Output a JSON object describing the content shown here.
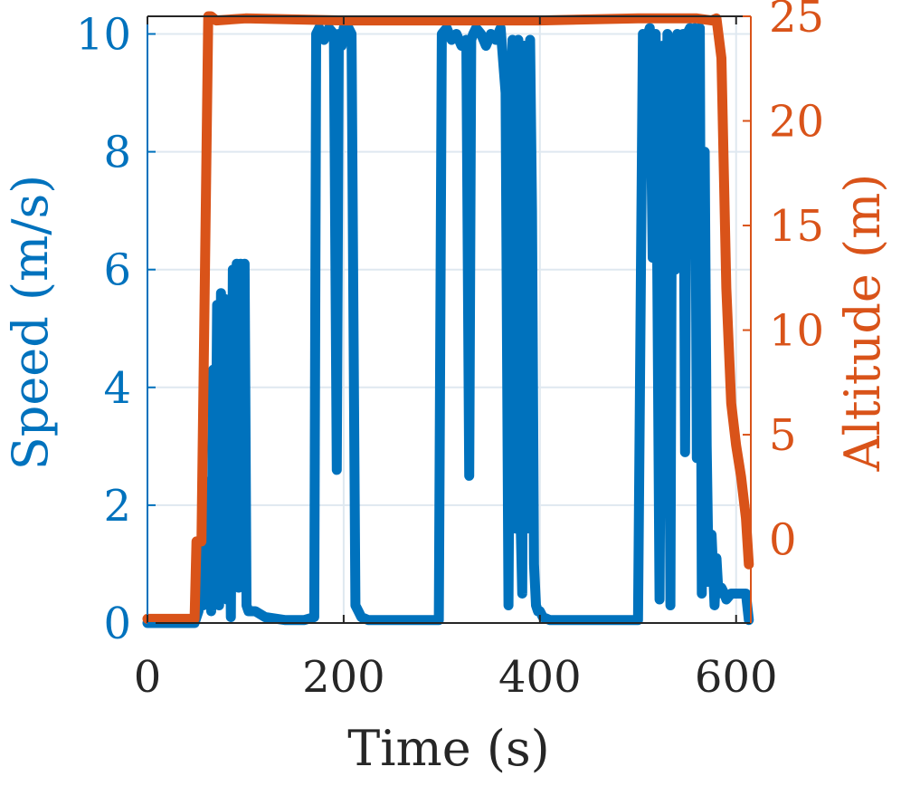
{
  "chart_data": {
    "type": "line",
    "title": "",
    "xlabel": "Time (s)",
    "ylabel_left": "Speed (m/s)",
    "ylabel_right": "Altitude (m)",
    "xlim": [
      0,
      615
    ],
    "ylim_left": [
      0,
      10.3
    ],
    "ylim_right": [
      -4,
      25
    ],
    "xticks": [
      0,
      200,
      400,
      600
    ],
    "yticks_left": [
      0,
      2,
      4,
      6,
      8,
      10
    ],
    "yticks_right": [
      0,
      5,
      10,
      15,
      20,
      25
    ],
    "grid": true,
    "colors": {
      "speed": "#0072BD",
      "altitude": "#D95319",
      "grid": "#dfe8f0",
      "text": "#262626"
    },
    "series": [
      {
        "axis": "left",
        "x": [
          0,
          45,
          48,
          52,
          55,
          57,
          59,
          61,
          63,
          65,
          67,
          69,
          71,
          73,
          75,
          77,
          79,
          81,
          83,
          85,
          87,
          89,
          91,
          93,
          95,
          97,
          99,
          101,
          103,
          105,
          110,
          120,
          140,
          160,
          170,
          172,
          175,
          180,
          185,
          190,
          193,
          195,
          198,
          200,
          203,
          205,
          208,
          212,
          215,
          218,
          225,
          250,
          290,
          297,
          300,
          305,
          310,
          315,
          320,
          325,
          328,
          330,
          332,
          335,
          340,
          345,
          350,
          355,
          360,
          365,
          368,
          370,
          372,
          374,
          376,
          378,
          380,
          382,
          384,
          386,
          388,
          390,
          392,
          394,
          396,
          398,
          400,
          403,
          410,
          430,
          470,
          500,
          505,
          508,
          512,
          515,
          518,
          522,
          525,
          528,
          530,
          533,
          535,
          538,
          540,
          543,
          546,
          548,
          550,
          553,
          556,
          558,
          560,
          563,
          565,
          568,
          570,
          572,
          575,
          578,
          580,
          582,
          585,
          588,
          590,
          595,
          600,
          605,
          610,
          613
        ],
        "y": [
          0,
          0,
          0,
          0.2,
          1.4,
          0.3,
          2.4,
          0.5,
          1.9,
          0.2,
          4.3,
          0.8,
          5.4,
          0.3,
          5.6,
          1.0,
          5.5,
          0.4,
          4.6,
          0.1,
          6.0,
          1.5,
          6.1,
          0.6,
          6.1,
          2.0,
          6.1,
          0.3,
          0.2,
          0.2,
          0.2,
          0.1,
          0.05,
          0.05,
          0.1,
          10.0,
          10.1,
          9.9,
          10.1,
          10.0,
          2.6,
          10.0,
          9.8,
          10.1,
          10.0,
          10.1,
          10.0,
          0.3,
          0.2,
          0.1,
          0.05,
          0.05,
          0.05,
          0.05,
          10.0,
          10.1,
          9.9,
          10.0,
          9.8,
          9.9,
          2.5,
          9.9,
          10.0,
          10.1,
          10.0,
          9.8,
          10.0,
          9.9,
          10.1,
          9.0,
          0.3,
          6.0,
          9.9,
          4.0,
          1.6,
          9.9,
          2.0,
          0.5,
          9.8,
          1.6,
          6.3,
          9.9,
          7.0,
          1.0,
          0.3,
          0.2,
          0.2,
          0.1,
          0.05,
          0.05,
          0.05,
          0.05,
          10.0,
          9.9,
          10.1,
          6.2,
          10.0,
          0.4,
          9.8,
          3.5,
          10.0,
          0.3,
          9.9,
          6.0,
          10.0,
          9.9,
          10.0,
          2.9,
          10.0,
          10.1,
          9.8,
          10.1,
          2.8,
          10.1,
          0.5,
          8.0,
          3.0,
          0.7,
          1.5,
          0.3,
          1.1,
          0.5,
          0.6,
          0.5,
          0.4,
          0.5,
          0.5,
          0.5,
          0.5,
          0.05
        ]
      },
      {
        "axis": "right",
        "x": [
          0,
          45,
          48,
          50,
          52,
          55,
          62,
          65,
          70,
          100,
          200,
          300,
          400,
          500,
          560,
          575,
          580,
          585,
          590,
          595,
          600,
          605,
          610,
          613
        ],
        "y": [
          -3.8,
          -3.8,
          -3.8,
          -0.1,
          -0.1,
          -0.1,
          25.0,
          25.0,
          24.8,
          24.9,
          24.8,
          24.8,
          24.8,
          24.9,
          24.9,
          24.8,
          24.9,
          23.0,
          12.0,
          6.5,
          4.5,
          3.0,
          1.0,
          -1.2
        ]
      }
    ]
  }
}
